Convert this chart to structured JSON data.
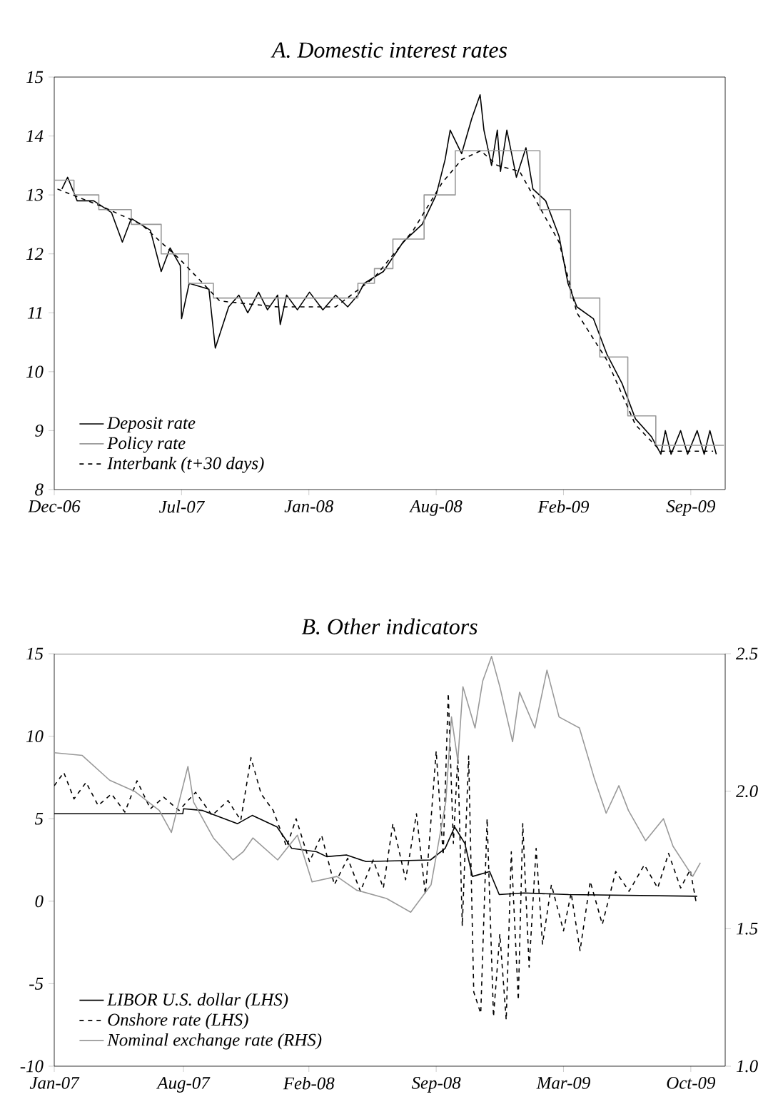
{
  "chart_data": [
    {
      "type": "line",
      "title": "A. Domestic interest rates",
      "xlim": [
        "2006-12-15",
        "2009-11-03"
      ],
      "ylim": [
        8,
        15
      ],
      "yticks": [
        8,
        9,
        10,
        11,
        12,
        13,
        14,
        15
      ],
      "xticks": [
        {
          "value": "2006-12-15",
          "label": "Dec-06"
        },
        {
          "value": "2007-07-03",
          "label": "Jul-07"
        },
        {
          "value": "2008-01-19",
          "label": "Jan-08"
        },
        {
          "value": "2008-08-06",
          "label": "Aug-08"
        },
        {
          "value": "2009-02-22",
          "label": "Feb-09"
        },
        {
          "value": "2009-09-10",
          "label": "Sep-09"
        }
      ],
      "legend": "bottom left",
      "grid": false,
      "series": [
        {
          "name": "Deposit rate",
          "color": "#000000",
          "line_style": "solid",
          "x": [
            "2006-12-27",
            "2007-01-05",
            "2007-01-20",
            "2007-02-15",
            "2007-03-15",
            "2007-04-01",
            "2007-04-15",
            "2007-05-15",
            "2007-06-01",
            "2007-06-15",
            "2007-07-01",
            "2007-07-03",
            "2007-07-15",
            "2007-08-15",
            "2007-08-25",
            "2007-09-15",
            "2007-10-01",
            "2007-10-15",
            "2007-11-01",
            "2007-11-15",
            "2007-12-01",
            "2007-12-05",
            "2007-12-15",
            "2008-01-01",
            "2008-01-20",
            "2008-02-10",
            "2008-03-01",
            "2008-03-20",
            "2008-04-05",
            "2008-04-15",
            "2008-05-15",
            "2008-06-15",
            "2008-07-15",
            "2008-08-06",
            "2008-08-20",
            "2008-08-28",
            "2008-09-15",
            "2008-10-01",
            "2008-10-14",
            "2008-10-20",
            "2008-11-01",
            "2008-11-10",
            "2008-11-15",
            "2008-11-25",
            "2008-12-10",
            "2008-12-25",
            "2009-01-05",
            "2009-01-25",
            "2009-02-15",
            "2009-03-01",
            "2009-03-15",
            "2009-04-10",
            "2009-05-01",
            "2009-05-25",
            "2009-06-15",
            "2009-07-10",
            "2009-07-25",
            "2009-08-01",
            "2009-08-10",
            "2009-08-25",
            "2009-09-05",
            "2009-09-20",
            "2009-10-01",
            "2009-10-10",
            "2009-10-20"
          ],
          "values": [
            13.1,
            13.3,
            12.9,
            12.9,
            12.7,
            12.2,
            12.6,
            12.4,
            11.7,
            12.1,
            11.8,
            10.9,
            11.5,
            11.4,
            10.4,
            11.1,
            11.3,
            11.0,
            11.35,
            11.05,
            11.3,
            10.8,
            11.3,
            11.05,
            11.35,
            11.05,
            11.3,
            11.1,
            11.3,
            11.5,
            11.7,
            12.2,
            12.5,
            13.0,
            13.6,
            14.1,
            13.7,
            14.3,
            14.7,
            14.1,
            13.5,
            14.1,
            13.4,
            14.1,
            13.3,
            13.8,
            13.1,
            12.9,
            12.3,
            11.5,
            11.1,
            10.9,
            10.3,
            9.8,
            9.2,
            8.9,
            8.6,
            9.0,
            8.6,
            9.0,
            8.6,
            9.0,
            8.6,
            9.0,
            8.6
          ]
        },
        {
          "name": "Policy rate",
          "type": "step",
          "color": "#999999",
          "line_style": "solid",
          "x": [
            "2006-12-15",
            "2007-01-15",
            "2007-02-23",
            "2007-04-15",
            "2007-06-01",
            "2007-07-14",
            "2007-08-22",
            "2008-04-05",
            "2008-05-01",
            "2008-05-30",
            "2008-07-18",
            "2008-09-05",
            "2009-01-16",
            "2009-03-05",
            "2009-04-20",
            "2009-06-03",
            "2009-07-17",
            "2009-11-01"
          ],
          "values": [
            13.25,
            13.0,
            12.75,
            12.5,
            12.0,
            11.5,
            11.25,
            11.5,
            11.75,
            12.25,
            13.0,
            13.75,
            12.75,
            11.25,
            10.25,
            9.25,
            8.75,
            8.75
          ]
        },
        {
          "name": "Interbank (t+30 days)",
          "color": "#000000",
          "line_style": "dashed",
          "x": [
            "2006-12-20",
            "2007-03-01",
            "2007-05-01",
            "2007-07-01",
            "2007-09-01",
            "2007-12-01",
            "2008-03-01",
            "2008-05-01",
            "2008-07-01",
            "2008-08-15",
            "2008-09-15",
            "2008-10-15",
            "2008-11-10",
            "2008-12-15",
            "2009-01-10",
            "2009-02-15",
            "2009-03-15",
            "2009-05-01",
            "2009-06-15",
            "2009-07-25",
            "2009-10-15"
          ],
          "values": [
            13.1,
            12.8,
            12.5,
            11.9,
            11.2,
            11.1,
            11.1,
            11.6,
            12.4,
            13.2,
            13.6,
            13.75,
            13.5,
            13.4,
            12.9,
            12.2,
            11.0,
            10.2,
            9.1,
            8.65,
            8.65
          ]
        }
      ]
    },
    {
      "type": "line",
      "title": "B. Other indicators",
      "xlim": [
        "2007-01-10",
        "2009-11-29"
      ],
      "ylim": [
        -10,
        15
      ],
      "yticks": [
        -10,
        -5,
        0,
        5,
        10,
        15
      ],
      "y2lim": [
        1.0,
        2.5
      ],
      "y2ticks": [
        {
          "value": 1.0,
          "label": "1.0"
        },
        {
          "value": 1.5,
          "label": "1.5"
        },
        {
          "value": 2.0,
          "label": "2.0"
        },
        {
          "value": 2.5,
          "label": "2.5"
        }
      ],
      "xticks": [
        {
          "value": "2007-01-10",
          "label": "Jan-07"
        },
        {
          "value": "2007-08-01",
          "label": "Aug-07"
        },
        {
          "value": "2008-02-14",
          "label": "Feb-08"
        },
        {
          "value": "2008-09-01",
          "label": "Sep-08"
        },
        {
          "value": "2009-03-20",
          "label": "Mar-09"
        },
        {
          "value": "2009-10-06",
          "label": "Oct-09"
        }
      ],
      "legend": "bottom left",
      "grid": false,
      "series": [
        {
          "name": "LIBOR U.S. dollar (LHS)",
          "color": "#000000",
          "line_style": "solid",
          "x": [
            "2007-01-10",
            "2007-07-31",
            "2007-08-01",
            "2007-08-31",
            "2007-10-25",
            "2007-11-17",
            "2007-12-26",
            "2008-01-18",
            "2008-02-26",
            "2008-03-13",
            "2008-04-13",
            "2008-05-14",
            "2008-08-23",
            "2008-09-15",
            "2008-09-30",
            "2008-10-16",
            "2008-10-28",
            "2008-11-24",
            "2008-12-09",
            "2009-01-17",
            "2009-03-28",
            "2009-10-16"
          ],
          "values": [
            5.3,
            5.3,
            5.6,
            5.5,
            4.7,
            5.2,
            4.5,
            3.2,
            3.0,
            2.7,
            2.8,
            2.4,
            2.5,
            3.2,
            4.5,
            3.5,
            1.5,
            1.8,
            0.4,
            0.5,
            0.4,
            0.3
          ]
        },
        {
          "name": "Onshore rate (LHS)",
          "color": "#000000",
          "line_style": "dashed",
          "x": [
            "2007-01-10",
            "2007-01-25",
            "2007-02-10",
            "2007-03-01",
            "2007-03-20",
            "2007-04-10",
            "2007-05-01",
            "2007-05-20",
            "2007-06-10",
            "2007-07-01",
            "2007-07-25",
            "2007-08-20",
            "2007-09-15",
            "2007-10-10",
            "2007-10-30",
            "2007-11-15",
            "2007-12-01",
            "2007-12-20",
            "2008-01-10",
            "2008-01-25",
            "2008-02-15",
            "2008-03-05",
            "2008-03-25",
            "2008-04-15",
            "2008-05-05",
            "2008-05-25",
            "2008-06-10",
            "2008-06-25",
            "2008-07-15",
            "2008-08-01",
            "2008-08-15",
            "2008-09-01",
            "2008-09-12",
            "2008-09-20",
            "2008-09-28",
            "2008-10-05",
            "2008-10-12",
            "2008-10-22",
            "2008-10-30",
            "2008-11-10",
            "2008-11-20",
            "2008-11-30",
            "2008-12-10",
            "2008-12-20",
            "2008-12-28",
            "2009-01-08",
            "2009-01-15",
            "2009-01-25",
            "2009-02-05",
            "2009-02-15",
            "2009-03-01",
            "2009-03-20",
            "2009-04-01",
            "2009-04-15",
            "2009-05-01",
            "2009-05-20",
            "2009-06-10",
            "2009-07-01",
            "2009-07-25",
            "2009-08-15",
            "2009-09-01",
            "2009-09-20",
            "2009-10-05",
            "2009-10-15"
          ],
          "values": [
            7.0,
            7.8,
            6.2,
            7.2,
            5.8,
            6.5,
            5.4,
            7.3,
            5.6,
            6.3,
            5.5,
            6.6,
            5.2,
            6.1,
            4.9,
            8.7,
            6.5,
            5.5,
            3.3,
            5.0,
            2.4,
            4.0,
            1.0,
            2.6,
            0.6,
            2.5,
            0.8,
            4.7,
            1.3,
            5.3,
            0.4,
            9.1,
            2.8,
            12.6,
            3.5,
            8.8,
            -1.5,
            8.8,
            -5.5,
            -6.8,
            5.0,
            -7.0,
            -2.0,
            -7.2,
            3.0,
            -6.0,
            4.7,
            -4.0,
            3.2,
            -2.6,
            1.0,
            -1.8,
            0.5,
            -3.0,
            1.2,
            -1.4,
            1.8,
            0.6,
            2.2,
            0.8,
            2.9,
            0.8,
            1.9,
            -0.2
          ]
        },
        {
          "name": "Nominal exchange rate (RHS)",
          "color": "#999999",
          "line_style": "solid",
          "axis": "y2",
          "x": [
            "2007-01-10",
            "2007-02-23",
            "2007-04-07",
            "2007-05-16",
            "2007-06-24",
            "2007-07-13",
            "2007-08-08",
            "2007-08-17",
            "2007-09-17",
            "2007-10-18",
            "2007-11-03",
            "2007-11-18",
            "2007-12-27",
            "2008-01-27",
            "2008-02-19",
            "2008-03-29",
            "2008-04-29",
            "2008-06-15",
            "2008-07-23",
            "2008-08-24",
            "2008-09-16",
            "2008-09-25",
            "2008-10-05",
            "2008-10-13",
            "2008-11-01",
            "2008-11-13",
            "2008-11-27",
            "2008-12-10",
            "2008-12-30",
            "2009-01-10",
            "2009-02-03",
            "2009-02-22",
            "2009-03-13",
            "2009-04-14",
            "2009-05-07",
            "2009-05-26",
            "2009-06-15",
            "2009-06-30",
            "2009-07-27",
            "2009-08-24",
            "2009-09-08",
            "2009-10-09",
            "2009-10-21"
          ],
          "values": [
            2.14,
            2.13,
            2.04,
            2.0,
            1.93,
            1.85,
            2.09,
            1.96,
            1.83,
            1.75,
            1.78,
            1.83,
            1.75,
            1.84,
            1.67,
            1.69,
            1.64,
            1.61,
            1.56,
            1.66,
            1.96,
            2.27,
            2.11,
            2.38,
            2.23,
            2.4,
            2.49,
            2.38,
            2.18,
            2.36,
            2.23,
            2.44,
            2.27,
            2.23,
            2.05,
            1.92,
            2.02,
            1.93,
            1.82,
            1.9,
            1.8,
            1.69,
            1.74
          ]
        }
      ]
    }
  ]
}
